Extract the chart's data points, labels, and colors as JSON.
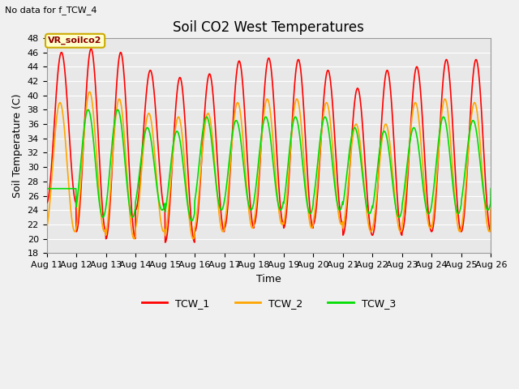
{
  "title": "Soil CO2 West Temperatures",
  "top_left_text": "No data for f_TCW_4",
  "annotation_text": "VR_soilco2",
  "xlabel": "Time",
  "ylabel": "Soil Temperature (C)",
  "ylim": [
    18,
    48
  ],
  "yticks": [
    18,
    20,
    22,
    24,
    26,
    28,
    30,
    32,
    34,
    36,
    38,
    40,
    42,
    44,
    46,
    48
  ],
  "xtick_labels": [
    "Aug 11",
    "Aug 12",
    "Aug 13",
    "Aug 14",
    "Aug 15",
    "Aug 16",
    "Aug 17",
    "Aug 18",
    "Aug 19",
    "Aug 20",
    "Aug 21",
    "Aug 22",
    "Aug 23",
    "Aug 24",
    "Aug 25",
    "Aug 26"
  ],
  "colors": {
    "TCW_1": "#ff0000",
    "TCW_2": "#ffa500",
    "TCW_3": "#00dd00",
    "background": "#e8e8e8",
    "fig_background": "#f0f0f0",
    "annotation_bg": "#ffffcc",
    "annotation_border": "#ccaa00",
    "grid": "#ffffff"
  },
  "title_fontsize": 12,
  "label_fontsize": 9,
  "tick_fontsize": 8,
  "annotation_fontsize": 8,
  "linewidth": 1.2
}
